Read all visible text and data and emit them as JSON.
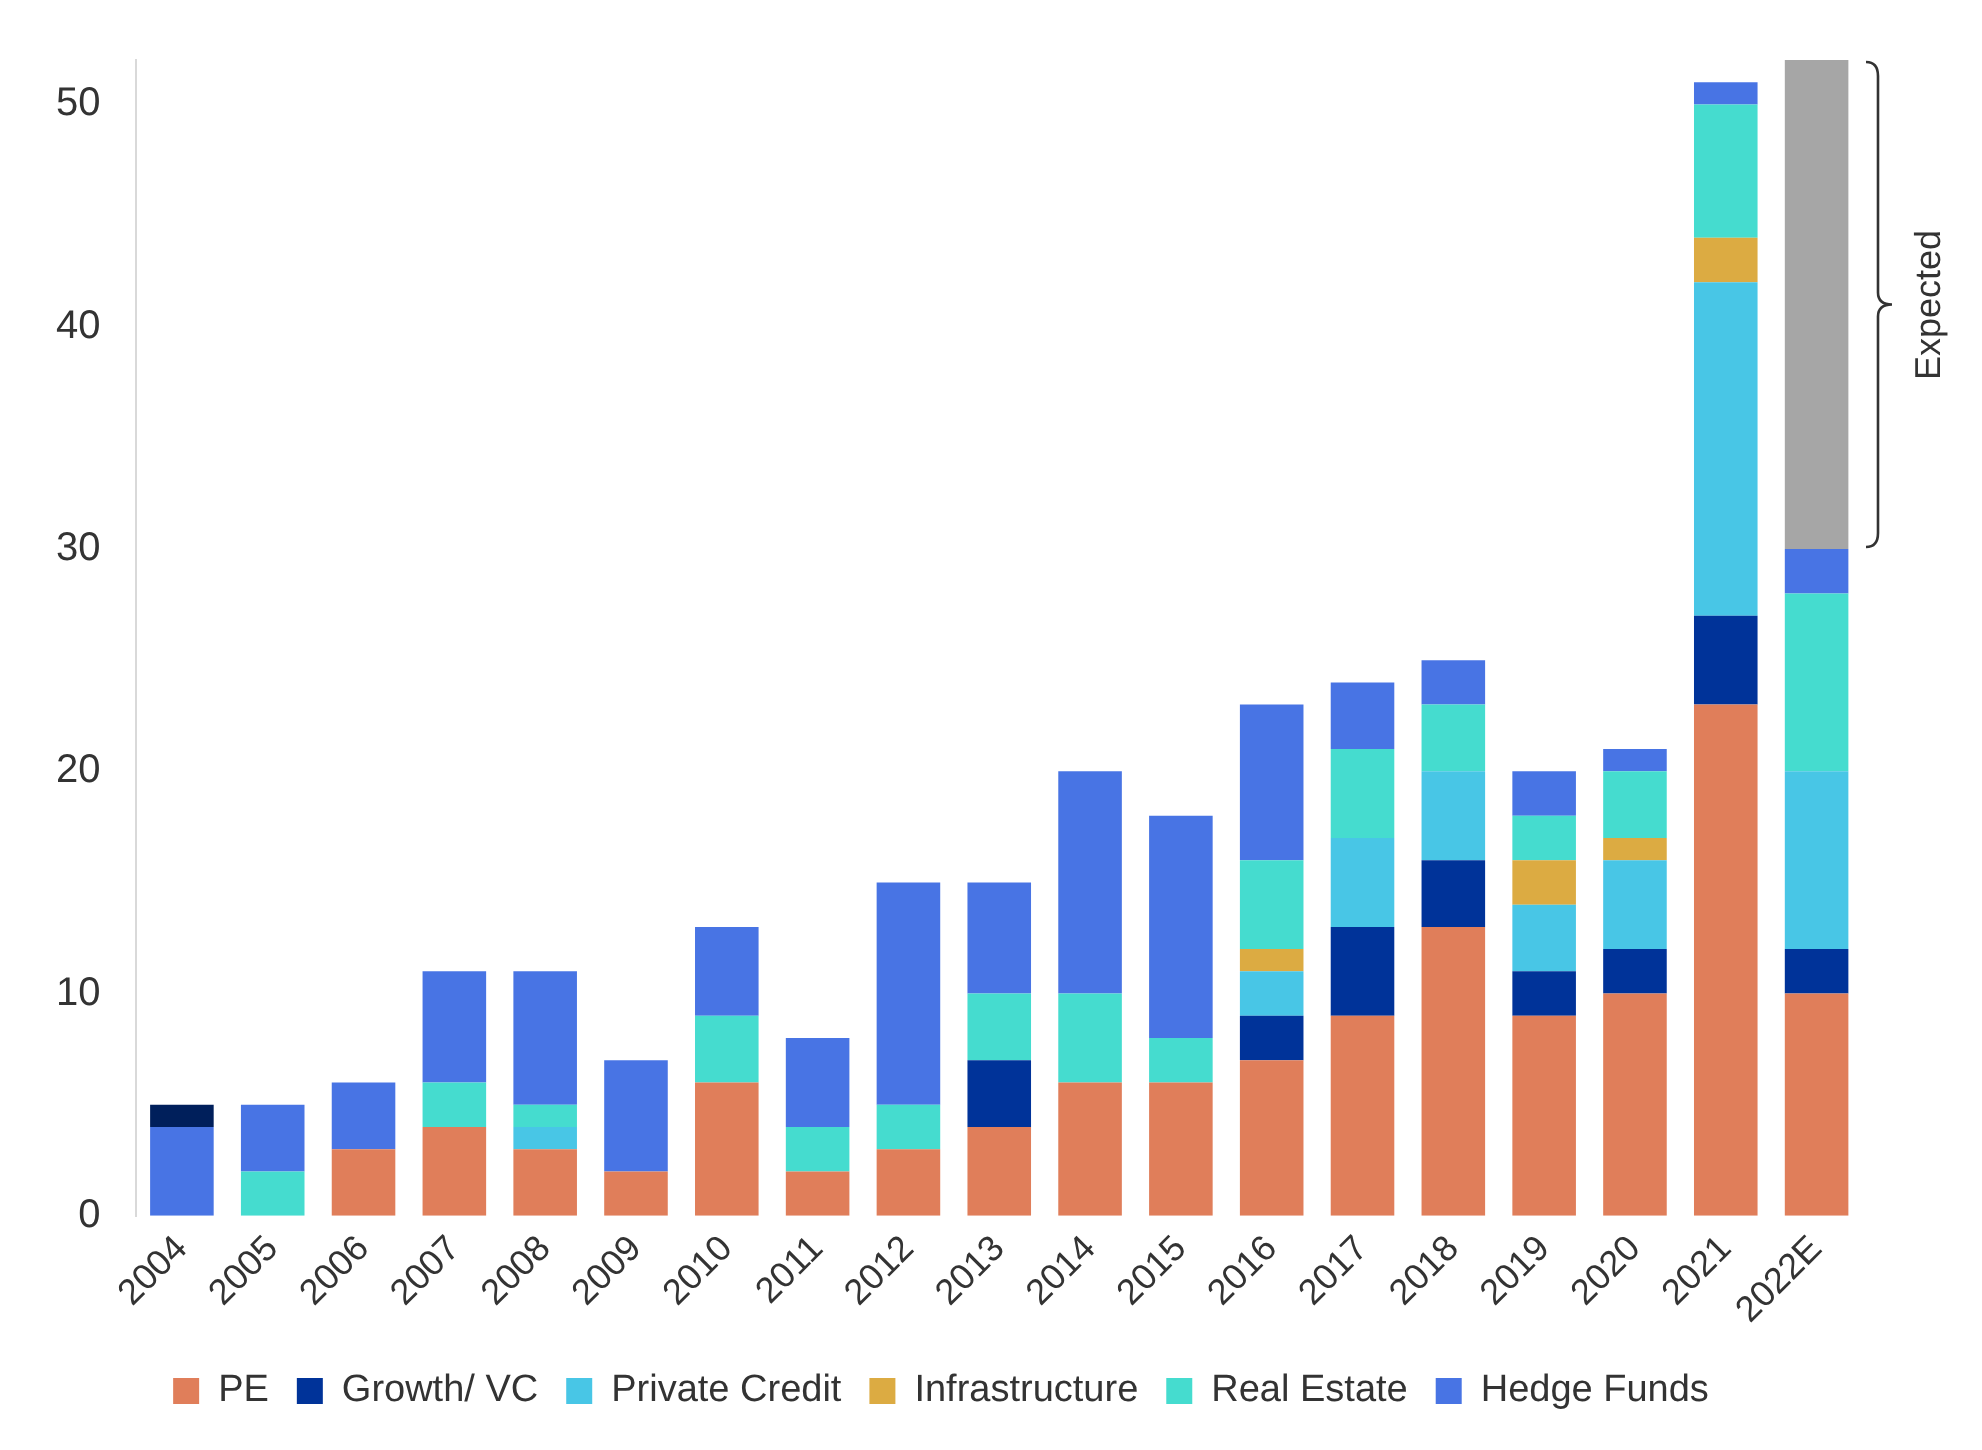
{
  "chart_data": {
    "type": "bar",
    "stacked": true,
    "categories": [
      "2004",
      "2005",
      "2006",
      "2007",
      "2008",
      "2009",
      "2010",
      "2011",
      "2012",
      "2013",
      "2014",
      "2015",
      "2016",
      "2017",
      "2018",
      "2019",
      "2020",
      "2021",
      "2022E"
    ],
    "series": [
      {
        "name": "PE",
        "color": "#e07e5a",
        "values": [
          0,
          0,
          3,
          4,
          3,
          2,
          6,
          2,
          3,
          4,
          6,
          6,
          7,
          9,
          13,
          9,
          10,
          23,
          10
        ]
      },
      {
        "name": "Growth/ VC",
        "color": "#003399",
        "values": [
          0,
          0,
          0,
          0,
          0,
          0,
          0,
          0,
          0,
          3,
          0,
          0,
          2,
          4,
          3,
          2,
          2,
          4,
          2
        ]
      },
      {
        "name": "Private Credit",
        "color": "#48c6e6",
        "values": [
          0,
          0,
          0,
          0,
          1,
          0,
          0,
          0,
          0,
          0,
          0,
          0,
          2,
          4,
          4,
          3,
          4,
          15,
          8
        ]
      },
      {
        "name": "Infrastructure",
        "color": "#dcab42",
        "values": [
          0,
          0,
          0,
          0,
          0,
          0,
          0,
          0,
          0,
          0,
          0,
          0,
          1,
          0,
          0,
          2,
          1,
          2,
          0
        ]
      },
      {
        "name": "Real Estate",
        "color": "#45dccf",
        "values": [
          0,
          2,
          0,
          2,
          1,
          0,
          3,
          2,
          2,
          3,
          4,
          2,
          4,
          4,
          3,
          2,
          3,
          6,
          8
        ]
      },
      {
        "name": "Hedge Funds",
        "color": "#4874e4",
        "values": [
          4,
          3,
          3,
          5,
          6,
          5,
          4,
          4,
          10,
          5,
          10,
          10,
          7,
          3,
          2,
          2,
          1,
          1,
          2
        ]
      },
      {
        "color": "#001f5b",
        "values": [
          1,
          0,
          0,
          0,
          0,
          0,
          0,
          0,
          0,
          0,
          0,
          0,
          0,
          0,
          0,
          0,
          0,
          0,
          0
        ]
      },
      {
        "color": "#a6a6a6",
        "values": [
          0,
          0,
          0,
          0,
          0,
          0,
          0,
          0,
          0,
          0,
          0,
          0,
          0,
          0,
          0,
          0,
          0,
          0,
          22
        ]
      }
    ],
    "ylim": [
      0,
      52
    ],
    "yticks": [
      0,
      10,
      20,
      30,
      40,
      50
    ],
    "grid": false,
    "legend": "bottom",
    "annotations": [
      "Expected"
    ]
  }
}
